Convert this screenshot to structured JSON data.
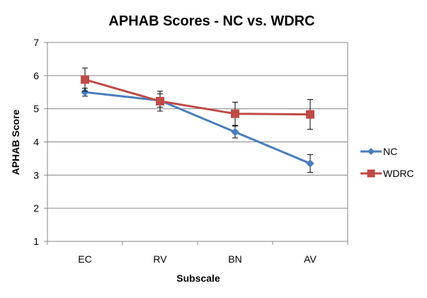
{
  "chart_data": {
    "type": "line",
    "title": "APHAB Scores - NC vs. WDRC",
    "xlabel": "Subscale",
    "ylabel": "APHAB Score",
    "categories": [
      "EC",
      "RV",
      "BN",
      "AV"
    ],
    "ylim": [
      1,
      7
    ],
    "yticks": [
      1,
      2,
      3,
      4,
      5,
      6,
      7
    ],
    "grid": true,
    "legend": "right",
    "series": [
      {
        "name": "NC",
        "color": "#4a7ebb",
        "marker": "diamond",
        "values": [
          5.5,
          5.25,
          4.3,
          3.35
        ],
        "error": [
          0.12,
          0.2,
          0.18,
          0.27
        ]
      },
      {
        "name": "WDRC",
        "color": "#be4b48",
        "marker": "square",
        "values": [
          5.88,
          5.23,
          4.85,
          4.83
        ],
        "error": [
          0.35,
          0.3,
          0.35,
          0.45
        ]
      }
    ]
  }
}
